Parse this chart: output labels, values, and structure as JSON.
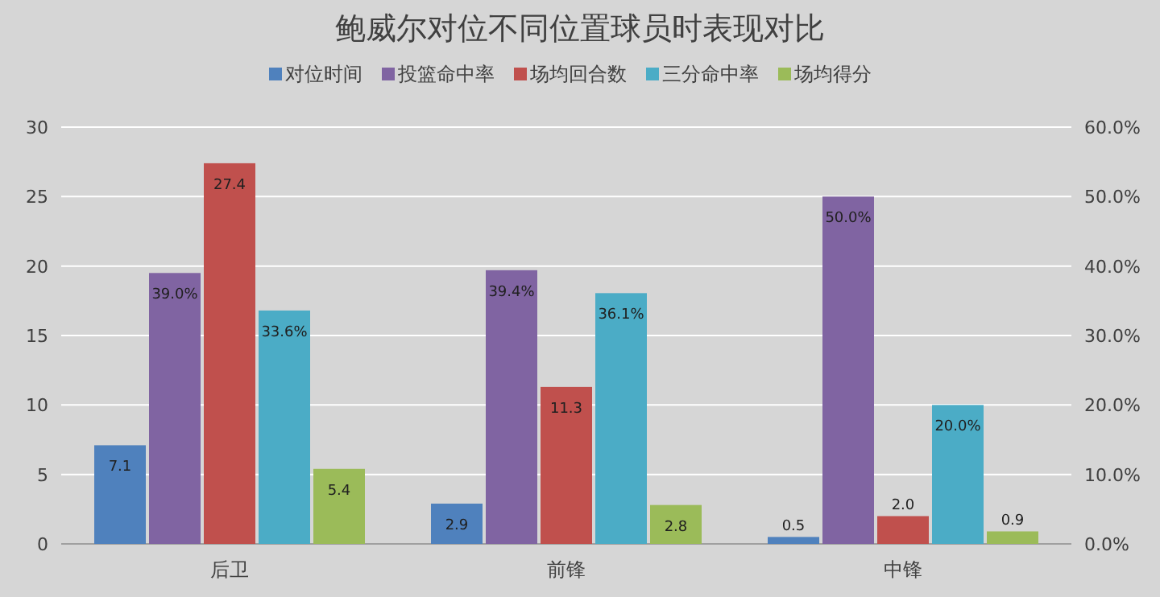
{
  "chart_data": {
    "type": "bar",
    "title": "鲍威尔对位不同位置球员时表现对比",
    "categories": [
      "后卫",
      "前锋",
      "中锋"
    ],
    "series": [
      {
        "name": "对位时间",
        "color": "#4f81bd",
        "values": [
          7.1,
          2.9,
          0.5
        ],
        "value_labels": [
          "7.1",
          "2.9",
          "0.5"
        ]
      },
      {
        "name": "投篮命中率",
        "color": "#8064a2",
        "values": [
          39.0,
          39.4,
          50.0
        ],
        "axis": "y2",
        "value_labels": [
          "39.0%",
          "39.4%",
          "50.0%"
        ]
      },
      {
        "name": "场均回合数",
        "color": "#c0504d",
        "values": [
          27.4,
          11.3,
          2.0
        ],
        "value_labels": [
          "27.4",
          "11.3",
          "2.0"
        ]
      },
      {
        "name": "三分命中率",
        "color": "#4bacc6",
        "values": [
          33.6,
          36.1,
          20.0
        ],
        "axis": "y2",
        "value_labels": [
          "33.6%",
          "36.1%",
          "20.0%"
        ]
      },
      {
        "name": "场均得分",
        "color": "#9bbb59",
        "values": [
          5.4,
          2.8,
          0.9
        ],
        "value_labels": [
          "5.4",
          "2.8",
          "0.9"
        ]
      }
    ],
    "ylim": [
      0,
      30
    ],
    "yticks": [
      0,
      5,
      10,
      15,
      20,
      25,
      30
    ],
    "y2lim": [
      0,
      60
    ],
    "y2ticks": [
      {
        "value": 0,
        "label": "0.0%"
      },
      {
        "value": 10,
        "label": "10.0%"
      },
      {
        "value": 20,
        "label": "20.0%"
      },
      {
        "value": 30,
        "label": "30.0%"
      },
      {
        "value": 40,
        "label": "40.0%"
      },
      {
        "value": 50,
        "label": "50.0%"
      },
      {
        "value": 60,
        "label": "60.0%"
      }
    ],
    "grid": "y",
    "legend": "top"
  }
}
